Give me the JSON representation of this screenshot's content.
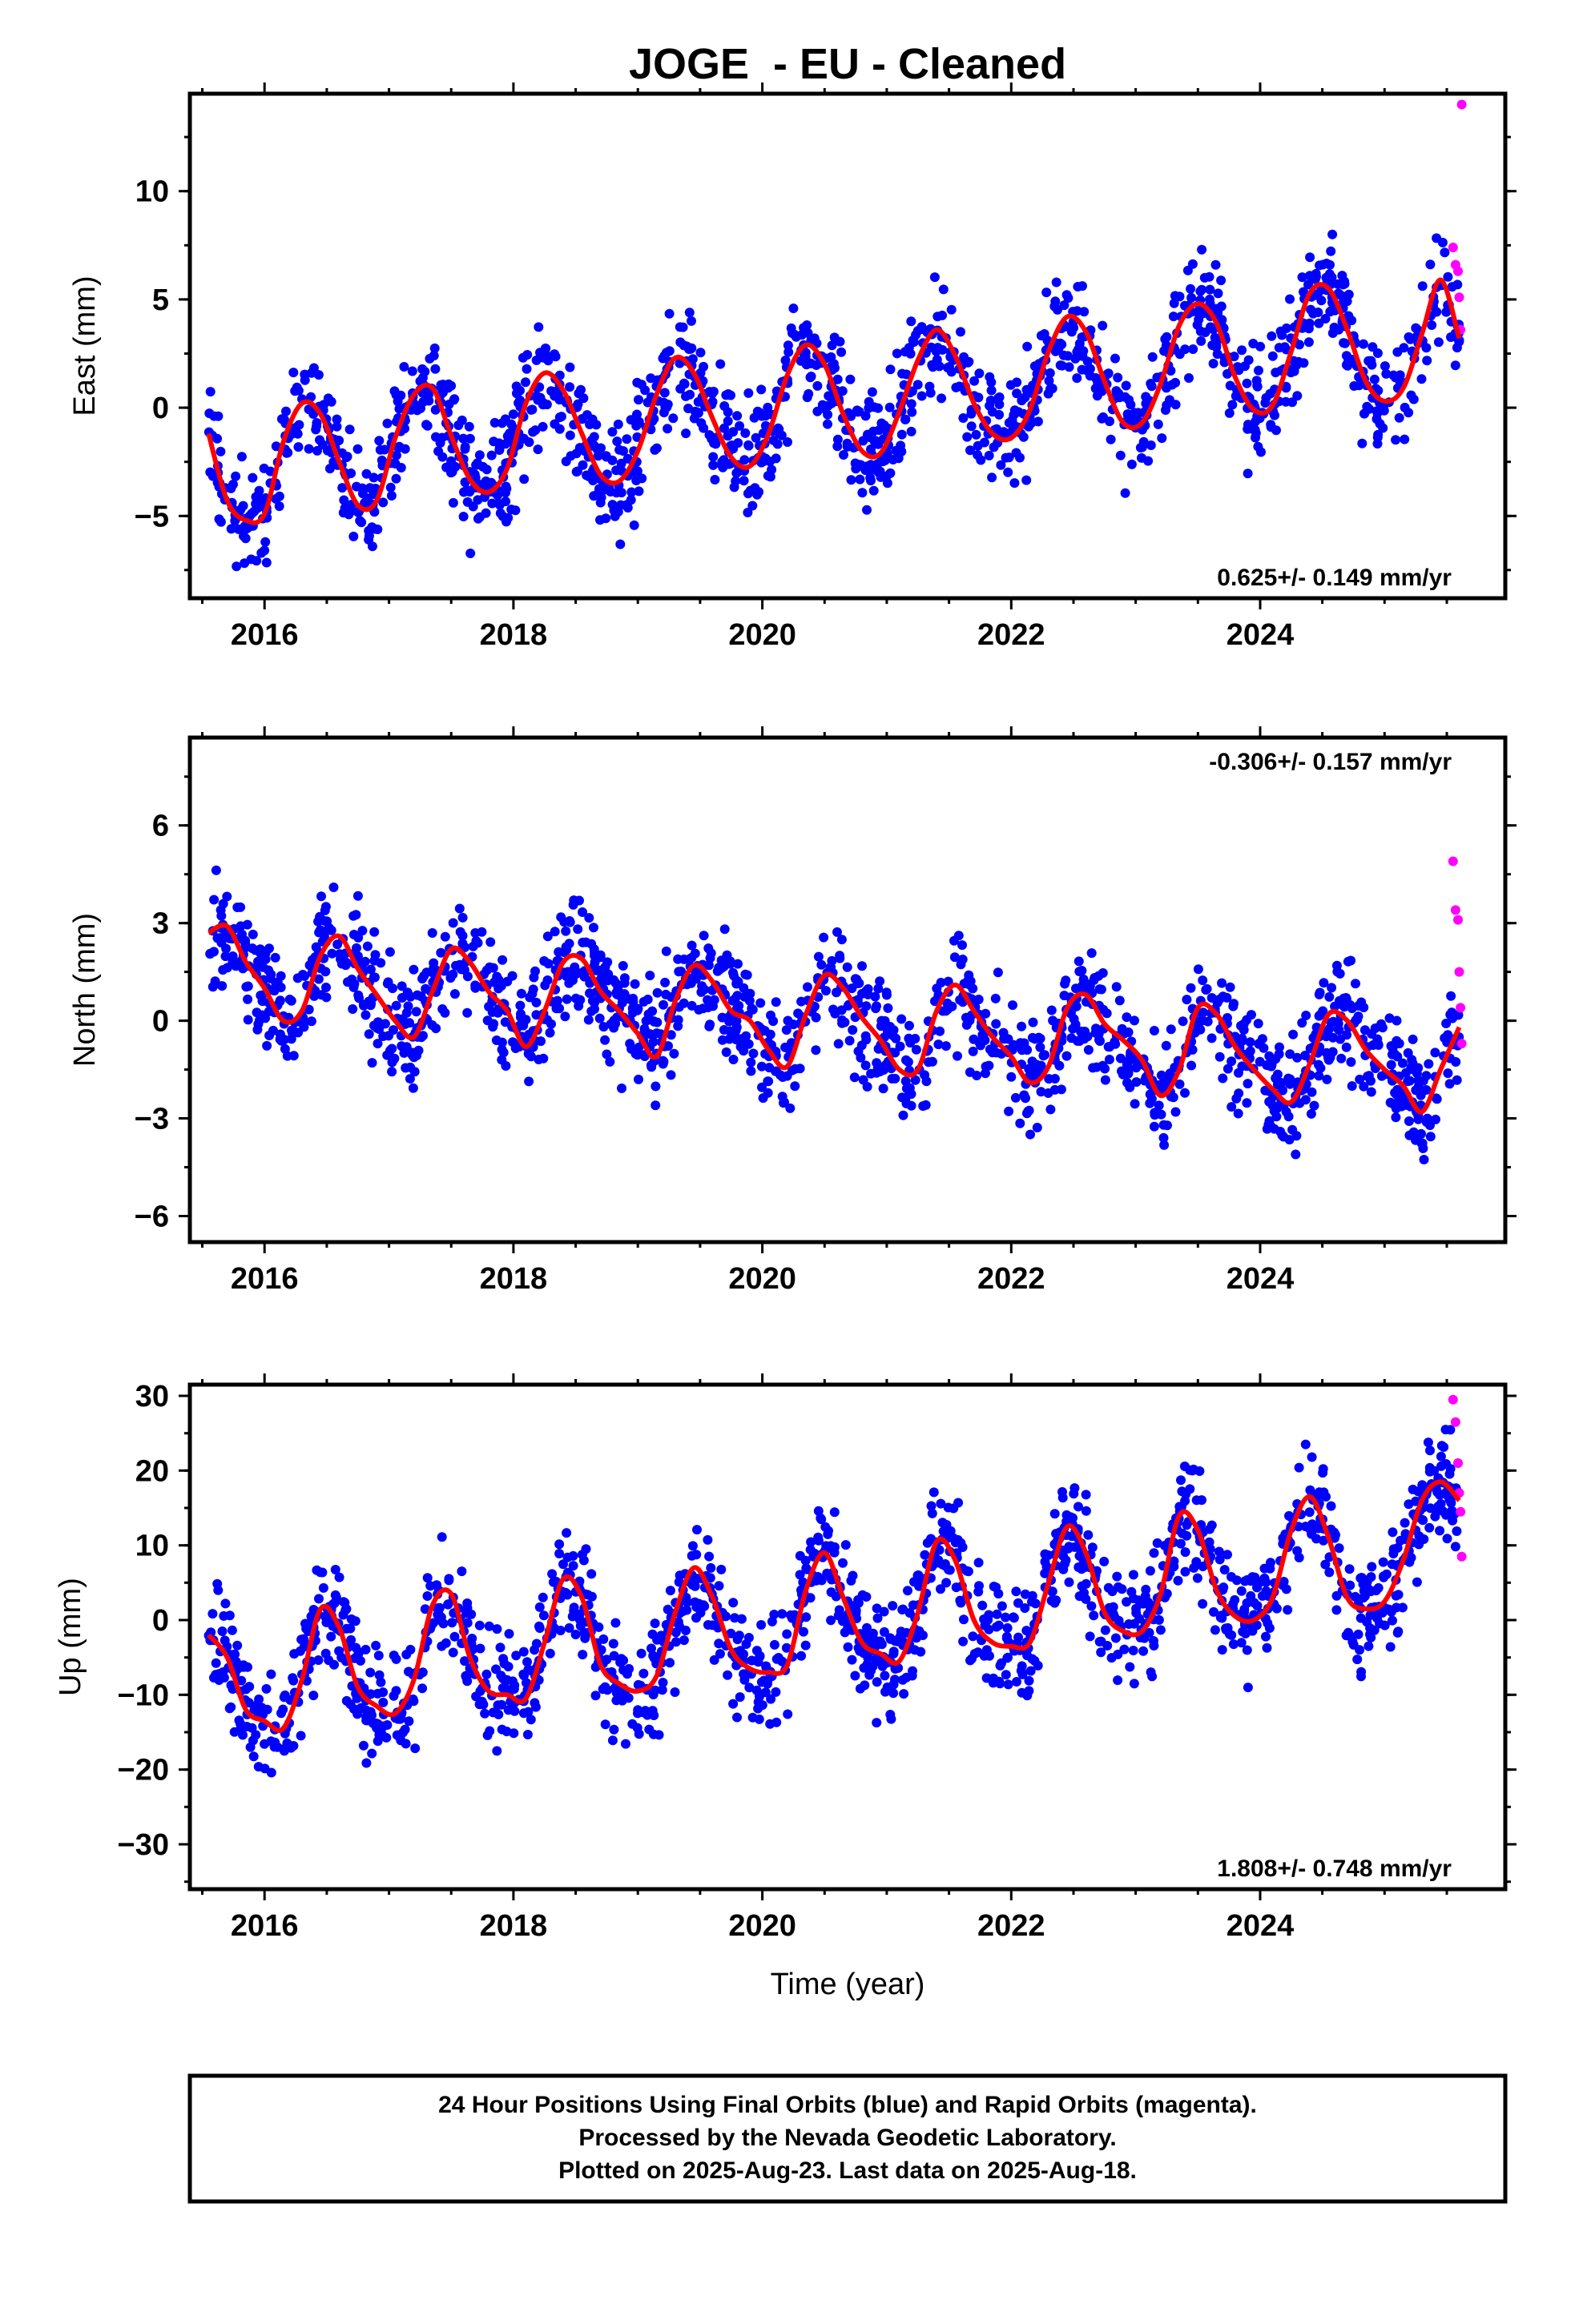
{
  "title": "JOGE  - EU - Cleaned",
  "colors": {
    "final": "#0000ff",
    "rapid": "#ff00ff",
    "model": "#ff0000",
    "frame": "#000000"
  },
  "footer": {
    "line1": "24 Hour Positions Using Final Orbits (blue) and Rapid Orbits (magenta).",
    "line2": "Processed by the Nevada Geodetic Laboratory.",
    "line3": "Plotted on 2025-Aug-23. Last data on 2025-Aug-18."
  },
  "chart_data": [
    {
      "type": "scatter",
      "ylabel": "East (mm)",
      "xlabel": "",
      "rate_label": "0.625+/- 0.149 mm/yr",
      "rate_position": "bottom-right",
      "xlim": [
        2015.4,
        2025.97
      ],
      "ylim": [
        -8.8,
        14.5
      ],
      "xticks": [
        2016,
        2018,
        2020,
        2022,
        2024
      ],
      "xtick_labels": [
        "2016",
        "2018",
        "2020",
        "2022",
        "2024"
      ],
      "yticks": [
        -5,
        0,
        5,
        10
      ],
      "ytick_labels": [
        "−5",
        "0",
        "5",
        "10"
      ],
      "series": [
        {
          "x": [
            2015.55,
            2015.7,
            2015.85,
            2016.0,
            2016.15,
            2016.3,
            2016.45,
            2016.6,
            2016.75,
            2016.9,
            2017.05,
            2017.2,
            2017.35,
            2017.5,
            2017.65,
            2017.8,
            2017.95,
            2018.1,
            2018.25,
            2018.4,
            2018.55,
            2018.7,
            2018.85,
            2019.0,
            2019.15,
            2019.3,
            2019.45,
            2019.6,
            2019.75,
            2019.9,
            2020.05,
            2020.2,
            2020.35,
            2020.5,
            2020.65,
            2020.8,
            2020.95,
            2021.1,
            2021.25,
            2021.4,
            2021.55,
            2021.7,
            2021.85,
            2022.0,
            2022.15,
            2022.3,
            2022.45,
            2022.6,
            2022.75,
            2022.9,
            2023.05,
            2023.2,
            2023.35,
            2023.5,
            2023.65,
            2023.8,
            2023.95,
            2024.1,
            2024.25,
            2024.4,
            2024.55,
            2024.7,
            2024.85,
            2025.0,
            2025.15,
            2025.3,
            2025.45,
            2025.6
          ],
          "y": [
            -1.2,
            -4.3,
            -5.2,
            -4.9,
            -1.6,
            0.2,
            -0.3,
            -2.5,
            -4.5,
            -4.3,
            -1.4,
            0.6,
            0.9,
            -1.3,
            -3.3,
            -3.9,
            -2.8,
            0.2,
            1.6,
            0.8,
            -1.2,
            -3.1,
            -3.4,
            -2.0,
            0.6,
            2.3,
            1.6,
            -0.5,
            -2.3,
            -2.7,
            -1.2,
            1.5,
            2.9,
            2.0,
            -0.3,
            -2.0,
            -2.1,
            -0.2,
            2.2,
            3.6,
            2.4,
            0.2,
            -1.2,
            -1.4,
            -0.1,
            2.6,
            4.2,
            3.5,
            1.2,
            -0.7,
            -0.7,
            1.1,
            3.8,
            4.8,
            3.9,
            1.4,
            -0.1,
            0.1,
            2.6,
            5.3,
            5.5,
            3.6,
            1.2,
            0.3,
            0.9,
            3.4,
            5.9,
            3.2
          ]
        },
        {
          "x": [
            2025.55,
            2025.57,
            2025.59,
            2025.6,
            2025.61,
            2025.62
          ],
          "y": [
            7.4,
            6.6,
            6.3,
            5.1,
            3.6,
            14.0
          ]
        }
      ]
    },
    {
      "type": "scatter",
      "ylabel": "North (mm)",
      "xlabel": "",
      "rate_label": "-0.306+/- 0.157 mm/yr",
      "rate_position": "top-right",
      "xlim": [
        2015.4,
        2025.97
      ],
      "ylim": [
        -6.8,
        8.7
      ],
      "xticks": [
        2016,
        2018,
        2020,
        2022,
        2024
      ],
      "xtick_labels": [
        "2016",
        "2018",
        "2020",
        "2022",
        "2024"
      ],
      "yticks": [
        -6,
        -3,
        0,
        3,
        6
      ],
      "ytick_labels": [
        "−6",
        "−3",
        "0",
        "3",
        "6"
      ],
      "series": [
        {
          "x": [
            2015.55,
            2015.7,
            2015.85,
            2016.0,
            2016.15,
            2016.3,
            2016.45,
            2016.6,
            2016.75,
            2016.9,
            2017.05,
            2017.2,
            2017.35,
            2017.5,
            2017.65,
            2017.8,
            2017.95,
            2018.1,
            2018.25,
            2018.4,
            2018.55,
            2018.7,
            2018.85,
            2019.0,
            2019.15,
            2019.3,
            2019.45,
            2019.6,
            2019.75,
            2019.9,
            2020.05,
            2020.2,
            2020.35,
            2020.5,
            2020.65,
            2020.8,
            2020.95,
            2021.1,
            2021.25,
            2021.4,
            2021.55,
            2021.7,
            2021.85,
            2022.0,
            2022.15,
            2022.3,
            2022.45,
            2022.6,
            2022.75,
            2022.9,
            2023.05,
            2023.2,
            2023.35,
            2023.5,
            2023.65,
            2023.8,
            2023.95,
            2024.1,
            2024.25,
            2024.4,
            2024.55,
            2024.7,
            2024.85,
            2025.0,
            2025.15,
            2025.3,
            2025.45,
            2025.6
          ],
          "y": [
            2.7,
            2.9,
            1.8,
            1.0,
            0.0,
            0.3,
            2.0,
            2.6,
            1.6,
            0.8,
            0.0,
            -0.5,
            0.9,
            2.2,
            1.8,
            0.9,
            0.3,
            -0.8,
            0.3,
            1.8,
            1.9,
            0.9,
            0.3,
            -0.4,
            -1.1,
            0.6,
            1.7,
            1.2,
            0.3,
            0.0,
            -0.9,
            -1.4,
            0.2,
            1.4,
            1.0,
            0.1,
            -0.6,
            -1.5,
            -1.5,
            0.3,
            1.1,
            0.3,
            -0.5,
            -1.1,
            -1.9,
            -1.4,
            0.4,
            0.8,
            -0.1,
            -0.6,
            -1.2,
            -2.3,
            -1.5,
            0.4,
            0.2,
            -0.8,
            -1.5,
            -2.1,
            -2.5,
            -1.3,
            0.2,
            0.0,
            -0.9,
            -1.5,
            -2.0,
            -2.8,
            -1.5,
            -0.2
          ]
        },
        {
          "x": [
            2025.55,
            2025.57,
            2025.59,
            2025.6,
            2025.61,
            2025.62
          ],
          "y": [
            4.9,
            3.4,
            3.1,
            1.5,
            0.4,
            -0.7
          ]
        }
      ]
    },
    {
      "type": "scatter",
      "ylabel": "Up (mm)",
      "xlabel": "Time (year)",
      "rate_label": "1.808+/- 0.748 mm/yr",
      "rate_position": "bottom-right",
      "xlim": [
        2015.4,
        2025.97
      ],
      "ylim": [
        -36,
        31.5
      ],
      "xticks": [
        2016,
        2018,
        2020,
        2022,
        2024
      ],
      "xtick_labels": [
        "2016",
        "2018",
        "2020",
        "2022",
        "2024"
      ],
      "yticks": [
        -30,
        -20,
        -10,
        0,
        10,
        20,
        30
      ],
      "ytick_labels": [
        "−30",
        "−20",
        "−10",
        "0",
        "10",
        "20",
        "30"
      ],
      "series": [
        {
          "x": [
            2015.55,
            2015.7,
            2015.85,
            2016.0,
            2016.15,
            2016.3,
            2016.45,
            2016.6,
            2016.75,
            2016.9,
            2017.05,
            2017.2,
            2017.35,
            2017.5,
            2017.65,
            2017.8,
            2017.95,
            2018.1,
            2018.25,
            2018.4,
            2018.55,
            2018.7,
            2018.85,
            2019.0,
            2019.15,
            2019.3,
            2019.45,
            2019.6,
            2019.75,
            2019.9,
            2020.05,
            2020.2,
            2020.35,
            2020.5,
            2020.65,
            2020.8,
            2020.95,
            2021.1,
            2021.25,
            2021.4,
            2021.55,
            2021.7,
            2021.85,
            2022.0,
            2022.15,
            2022.3,
            2022.45,
            2022.6,
            2022.75,
            2022.9,
            2023.05,
            2023.2,
            2023.35,
            2023.5,
            2023.65,
            2023.8,
            2023.95,
            2024.1,
            2024.25,
            2024.4,
            2024.55,
            2024.7,
            2024.85,
            2025.0,
            2025.15,
            2025.3,
            2025.45,
            2025.6
          ],
          "y": [
            -2.0,
            -5.0,
            -12.0,
            -13.5,
            -14.5,
            -8.0,
            1.5,
            -1.0,
            -9.0,
            -11.5,
            -12.5,
            -8.0,
            2.0,
            3.5,
            -5.0,
            -9.5,
            -10.0,
            -10.5,
            -3.0,
            5.5,
            3.0,
            -6.0,
            -8.5,
            -9.5,
            -7.5,
            1.0,
            7.0,
            3.0,
            -4.0,
            -6.5,
            -7.0,
            -6.0,
            4.0,
            9.0,
            3.0,
            -3.0,
            -4.5,
            -5.5,
            1.0,
            10.5,
            8.0,
            0.0,
            -3.0,
            -3.5,
            -3.0,
            5.0,
            12.5,
            9.0,
            1.0,
            -1.5,
            -1.5,
            3.5,
            14.0,
            12.0,
            4.0,
            0.5,
            0.0,
            3.0,
            12.0,
            16.5,
            11.0,
            3.0,
            1.5,
            2.5,
            8.0,
            16.0,
            18.5,
            16.0
          ]
        },
        {
          "x": [
            2025.55,
            2025.57,
            2025.59,
            2025.6,
            2025.61,
            2025.62
          ],
          "y": [
            29.5,
            26.5,
            21.0,
            17.0,
            14.5,
            8.5
          ]
        }
      ]
    }
  ]
}
